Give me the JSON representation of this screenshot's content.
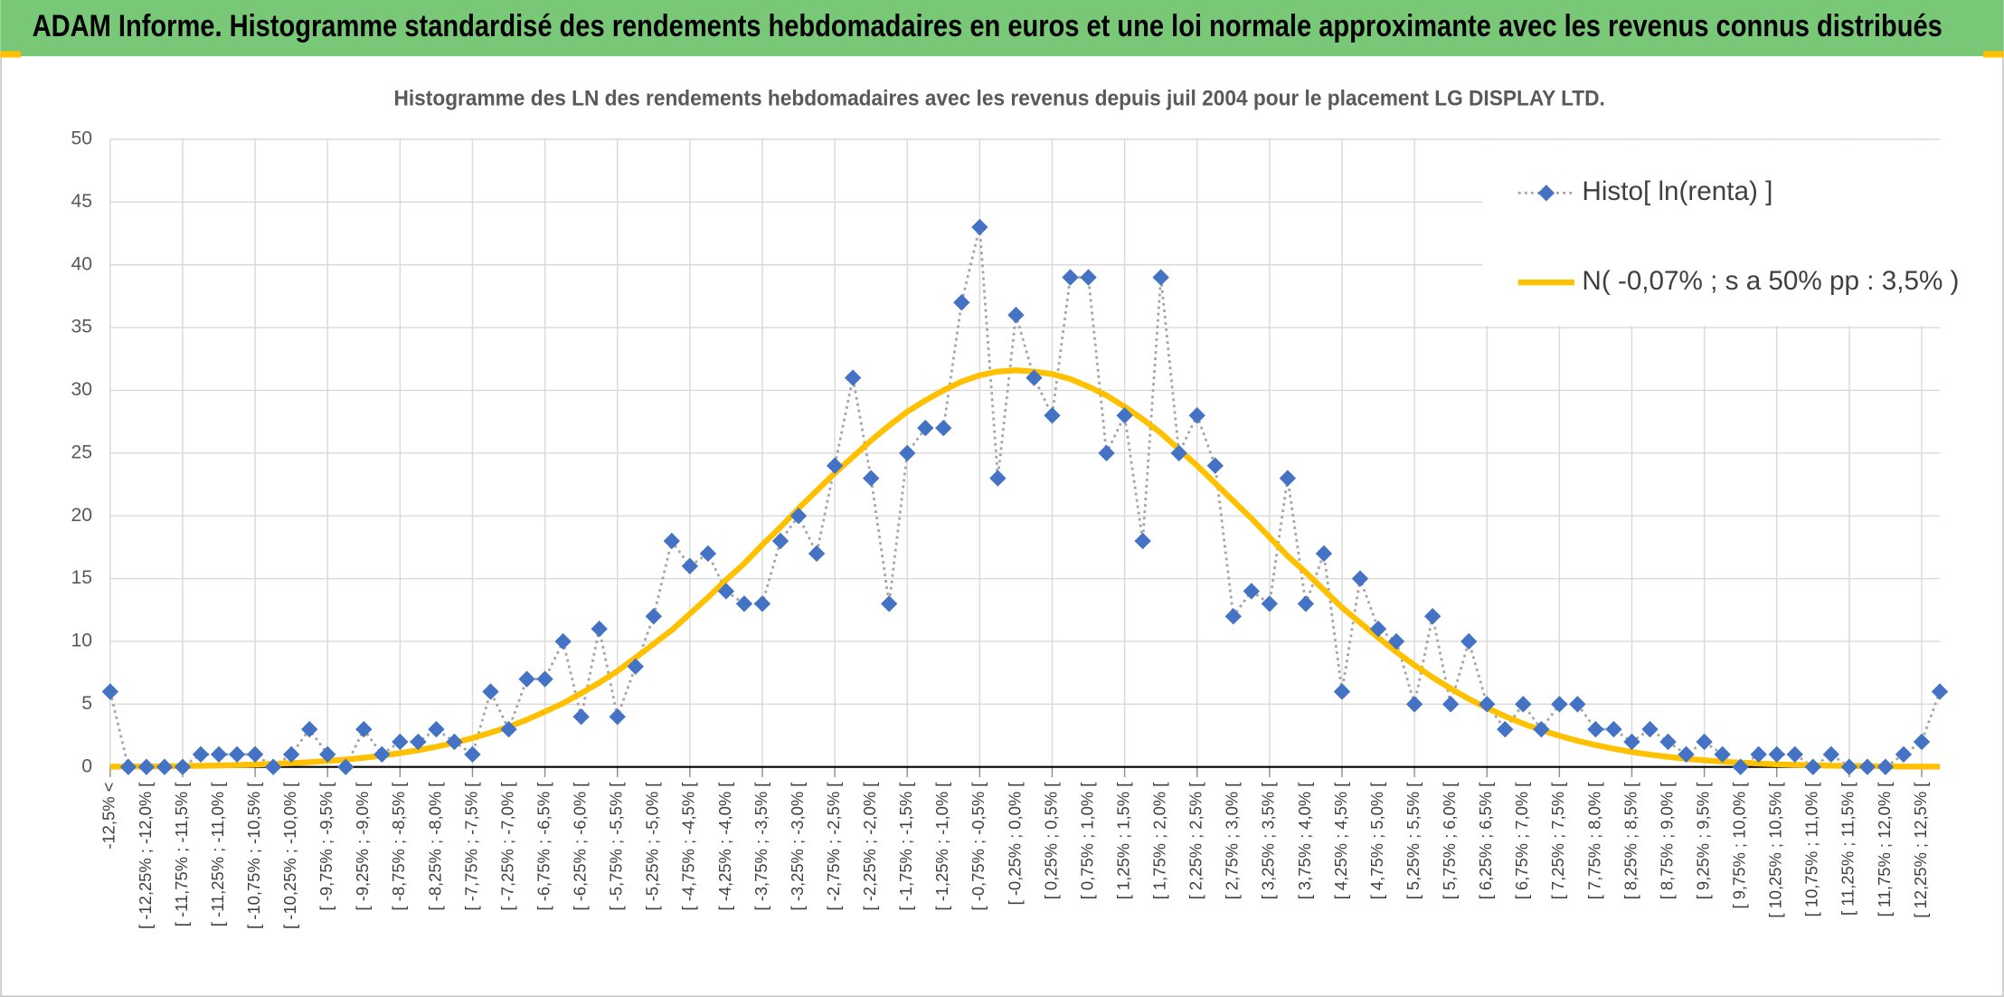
{
  "header": {
    "title": "ADAM Informe. Histogramme standardisé des rendements hebdomadaires en euros et une loi normale approximante avec les revenus connus distribués"
  },
  "chart_data": {
    "type": "line",
    "title": "Histogramme des LN des rendements hebdomadaires avec les revenus depuis juil 2004 pour le placement LG DISPLAY LTD.",
    "categories": [
      "-12,5% <",
      null,
      "[ -12,25% ; -12,0% [",
      null,
      "[ -11,75% ; -11,5% [",
      null,
      "[ -11,25% ; -11,0% [",
      null,
      "[ -10,75% ; -10,5% [",
      null,
      "[ -10,25% ; -10,0% [",
      null,
      "[ -9,75% ; -9,5% [",
      null,
      "[ -9,25% ; -9,0% [",
      null,
      "[ -8,75% ; -8,5% [",
      null,
      "[ -8,25% ; -8,0% [",
      null,
      "[ -7,75% ; -7,5% [",
      null,
      "[ -7,25% ; -7,0% [",
      null,
      "[ -6,75% ; -6,5% [",
      null,
      "[ -6,25% ; -6,0% [",
      null,
      "[ -5,75% ; -5,5% [",
      null,
      "[ -5,25% ; -5,0% [",
      null,
      "[ -4,75% ; -4,5% [",
      null,
      "[ -4,25% ; -4,0% [",
      null,
      "[ -3,75% ; -3,5% [",
      null,
      "[ -3,25% ; -3,0% [",
      null,
      "[ -2,75% ; -2,5% [",
      null,
      "[ -2,25% ; -2,0% [",
      null,
      "[ -1,75% ; -1,5% [",
      null,
      "[ -1,25% ; -1,0% [",
      null,
      "[ -0,75% ; -0,5% [",
      null,
      "[ -0,25% ; 0,0% [",
      null,
      "[ 0,25% ; 0,5% [",
      null,
      "[ 0,75% ; 1,0% [",
      null,
      "[ 1,25% ; 1,5% [",
      null,
      "[ 1,75% ; 2,0% [",
      null,
      "[ 2,25% ; 2,5% [",
      null,
      "[ 2,75% ; 3,0% [",
      null,
      "[ 3,25% ; 3,5% [",
      null,
      "[ 3,75% ; 4,0% [",
      null,
      "[ 4,25% ; 4,5% [",
      null,
      "[ 4,75% ; 5,0% [",
      null,
      "[ 5,25% ; 5,5% [",
      null,
      "[ 5,75% ; 6,0% [",
      null,
      "[ 6,25% ; 6,5% [",
      null,
      "[ 6,75% ; 7,0% [",
      null,
      "[ 7,25% ; 7,5% [",
      null,
      "[ 7,75% ; 8,0% [",
      null,
      "[ 8,25% ; 8,5% [",
      null,
      "[ 8,75% ; 9,0% [",
      null,
      "[ 9,25% ; 9,5% [",
      null,
      "[ 9,75% ; 10,0% [",
      null,
      "[ 10,25% ; 10,5% [",
      null,
      "[ 10,75% ; 11,0% [",
      null,
      "[ 11,25% ; 11,5% [",
      null,
      "[ 11,75% ; 12,0% [",
      null,
      "[ 12,25% ; 12,5% [",
      null
    ],
    "series": [
      {
        "name": "Histo[ ln(renta) ]",
        "color": "#4472c4",
        "line_color": "#a5a5a5",
        "line_style": "dotted",
        "marker": "diamond",
        "values": [
          6,
          0,
          0,
          0,
          0,
          1,
          1,
          1,
          1,
          0,
          1,
          3,
          1,
          0,
          3,
          1,
          2,
          2,
          3,
          2,
          1,
          6,
          3,
          7,
          7,
          10,
          4,
          11,
          4,
          8,
          12,
          18,
          16,
          17,
          14,
          13,
          13,
          18,
          20,
          17,
          24,
          31,
          23,
          13,
          25,
          27,
          27,
          37,
          43,
          23,
          36,
          31,
          28,
          39,
          39,
          25,
          28,
          18,
          39,
          25,
          28,
          24,
          12,
          14,
          13,
          23,
          13,
          17,
          6,
          15,
          11,
          10,
          5,
          12,
          5,
          10,
          5,
          3,
          5,
          3,
          5,
          5,
          3,
          3,
          2,
          3,
          2,
          1,
          2,
          1,
          0,
          1,
          1,
          1,
          0,
          1,
          0,
          0,
          0,
          1,
          2,
          6
        ]
      },
      {
        "name": "N( -0,07% ; s a 50% pp : 3,5% )",
        "color": "#ffc000",
        "line_style": "solid",
        "marker": "none",
        "values": [
          0.02,
          0.03,
          0.04,
          0.05,
          0.07,
          0.09,
          0.12,
          0.15,
          0.19,
          0.24,
          0.3,
          0.38,
          0.48,
          0.59,
          0.73,
          0.9,
          1.1,
          1.33,
          1.61,
          1.92,
          2.3,
          2.73,
          3.2,
          3.76,
          4.4,
          5.07,
          5.87,
          6.71,
          7.64,
          8.7,
          9.8,
          10.9,
          12.2,
          13.5,
          14.9,
          16.2,
          17.7,
          19.1,
          20.6,
          22.0,
          23.4,
          24.7,
          26.0,
          27.2,
          28.3,
          29.2,
          30.0,
          30.7,
          31.2,
          31.5,
          31.6,
          31.5,
          31.3,
          30.9,
          30.3,
          29.6,
          28.7,
          27.7,
          26.6,
          25.3,
          24.0,
          22.6,
          21.2,
          19.8,
          18.3,
          16.8,
          15.5,
          14.1,
          12.7,
          11.5,
          10.3,
          9.16,
          8.11,
          7.13,
          6.24,
          5.42,
          4.69,
          4.04,
          3.45,
          2.93,
          2.48,
          2.08,
          1.74,
          1.45,
          1.19,
          0.98,
          0.8,
          0.65,
          0.53,
          0.42,
          0.34,
          0.27,
          0.21,
          0.17,
          0.13,
          0.1,
          0.08,
          0.06,
          0.05,
          0.03,
          0.03,
          0.02
        ]
      }
    ],
    "ylim": [
      0,
      50
    ],
    "yticks": [
      0,
      5,
      10,
      15,
      20,
      25,
      30,
      35,
      40,
      45,
      50
    ],
    "grid": true,
    "legend": "upper right"
  }
}
